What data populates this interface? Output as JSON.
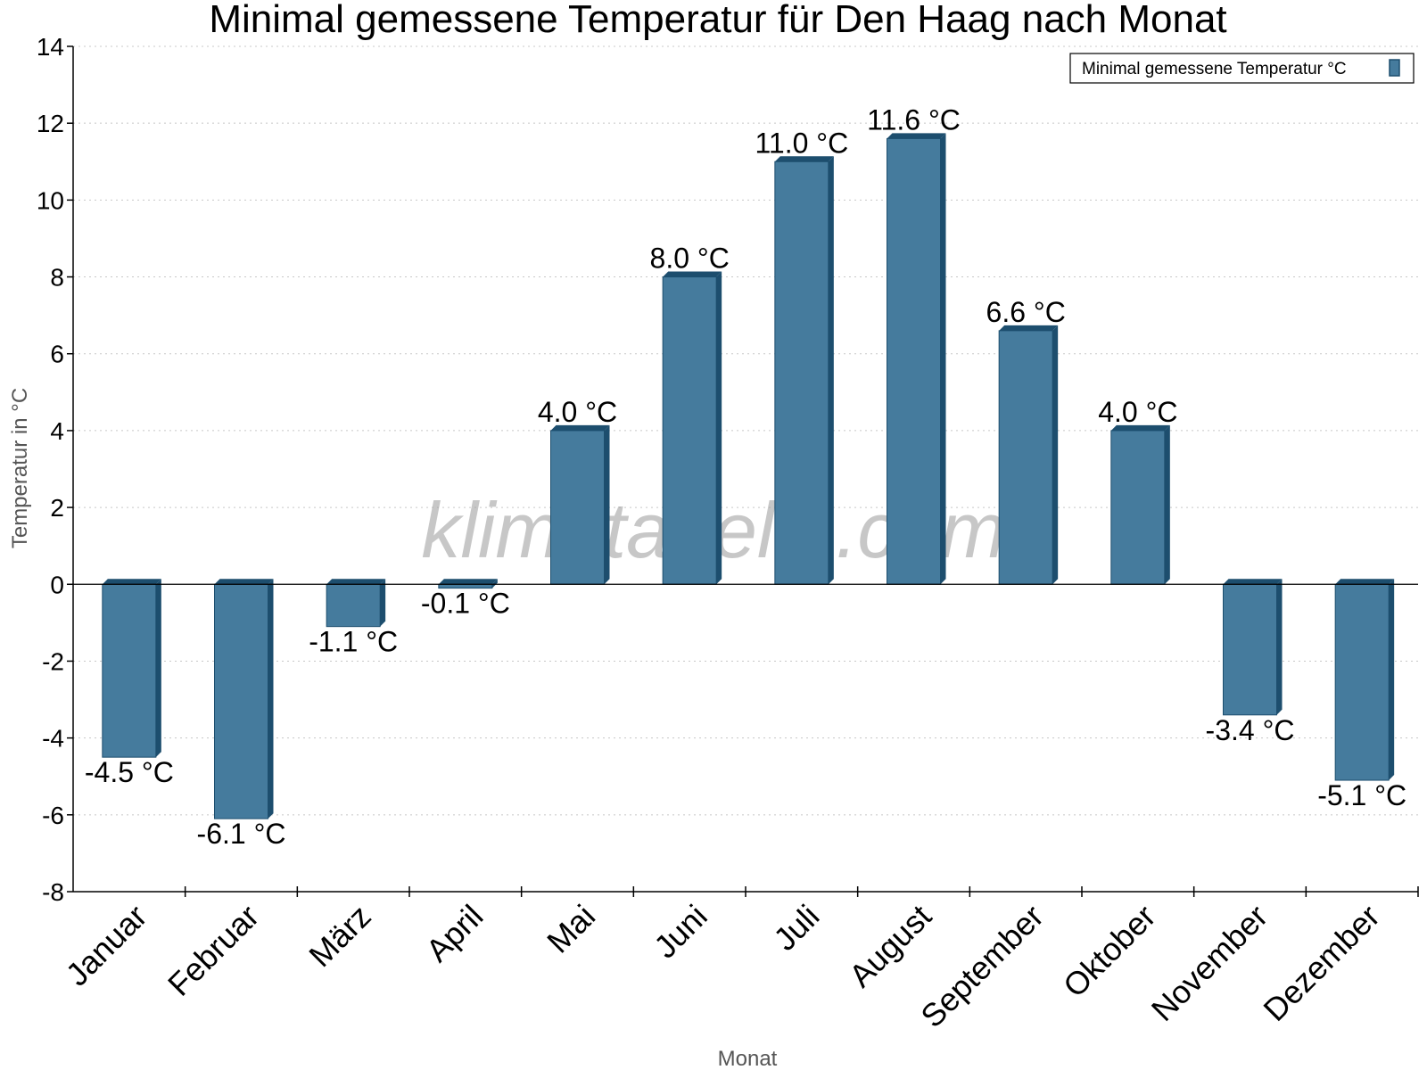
{
  "chart_data": {
    "type": "bar",
    "title": "Minimal gemessene Temperatur für Den Haag nach Monat",
    "xlabel": "Monat",
    "ylabel": "Temperatur in °C",
    "categories": [
      "Januar",
      "Februar",
      "März",
      "April",
      "Mai",
      "Juni",
      "Juli",
      "August",
      "September",
      "Oktober",
      "November",
      "Dezember"
    ],
    "series": [
      {
        "name": "Minimal gemessene Temperatur °C",
        "values": [
          -4.5,
          -6.1,
          -1.1,
          -0.1,
          4.0,
          8.0,
          11.0,
          11.6,
          6.6,
          4.0,
          -3.4,
          -5.1
        ],
        "data_labels": [
          "-4.5 °C",
          "-6.1 °C",
          "-1.1 °C",
          "-0.1 °C",
          "4.0 °C",
          "8.0 °C",
          "11.0 °C",
          "11.6 °C",
          "6.6 °C",
          "4.0 °C",
          "-3.4 °C",
          "-5.1 °C"
        ],
        "color": "#457b9d",
        "edge_color": "#1d4e6e"
      }
    ],
    "ylim": [
      -8,
      14
    ],
    "yticks": [
      "-8",
      "-6",
      "-4",
      "-2",
      "0",
      "2",
      "4",
      "6",
      "8",
      "10",
      "12",
      "14"
    ],
    "grid": true,
    "legend_position": "top-right",
    "watermark": "klimatabelle.com"
  }
}
